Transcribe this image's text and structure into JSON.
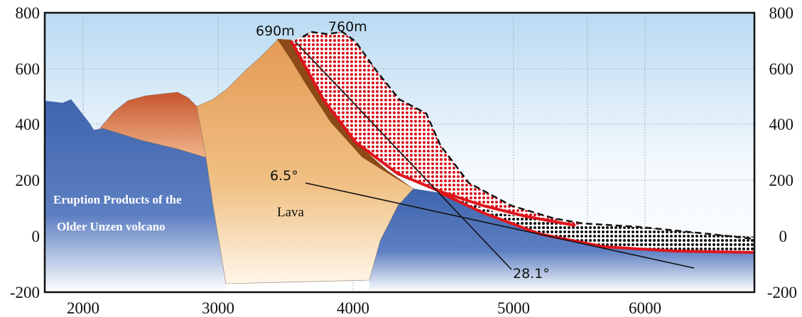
{
  "axes": {
    "x_ticks": [
      "2000",
      "3000",
      "4000",
      "5000",
      "6000"
    ],
    "y_ticks_left": [
      "800",
      "600",
      "400",
      "200",
      "0",
      "-200"
    ],
    "y_ticks_right": [
      "800",
      "600",
      "400",
      "200",
      "0",
      "-200"
    ],
    "grid": true
  },
  "annotations": {
    "peak_old": "690m",
    "peak_new": "760m",
    "angle_small": "6.5°",
    "angle_large": "28.1°"
  },
  "labels": {
    "lava": "Lava",
    "eruption_line1": "Eruption Products of the",
    "eruption_line2": "Older Unzen volcano"
  },
  "colors": {
    "old_volcano": "#4a6fb5",
    "dome": "#c9643a",
    "lava": "#e8a866",
    "brown_layer": "#8b4a18",
    "deposit_red": "#e0141c",
    "sky": "#bcdcf3"
  }
}
